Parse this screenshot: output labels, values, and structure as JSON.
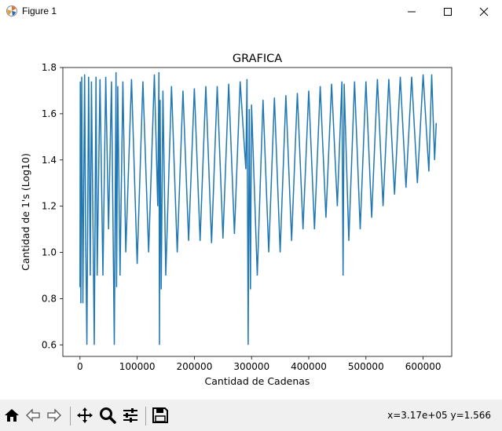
{
  "window": {
    "title": "Figure 1",
    "minimize_icon": "minimize-icon",
    "maximize_icon": "maximize-icon",
    "close_icon": "close-icon"
  },
  "toolbar": {
    "buttons": [
      {
        "name": "home-icon"
      },
      {
        "name": "back-arrow-icon"
      },
      {
        "name": "forward-arrow-icon"
      },
      {
        "name": "pan-icon"
      },
      {
        "name": "zoom-icon"
      },
      {
        "name": "configure-subplots-icon"
      },
      {
        "name": "save-icon"
      }
    ],
    "coordinates": "x=3.17e+05 y=1.566"
  },
  "chart_data": {
    "type": "line",
    "title": "GRAFICA",
    "xlabel": "Cantidad de Cadenas",
    "ylabel": "Cantidad de 1's (Log10)",
    "xlim": [
      -30000,
      650000
    ],
    "ylim": [
      0.55,
      1.8
    ],
    "xticks": [
      0,
      100000,
      200000,
      300000,
      400000,
      500000,
      600000
    ],
    "xtick_labels": [
      "0",
      "100000",
      "200000",
      "300000",
      "400000",
      "500000",
      "600000"
    ],
    "yticks": [
      0.6,
      0.8,
      1.0,
      1.2,
      1.4,
      1.6,
      1.8
    ],
    "ytick_labels": [
      "0.6",
      "0.8",
      "1.0",
      "1.2",
      "1.4",
      "1.6",
      "1.8"
    ],
    "line_color": "#1f77b4",
    "grid": false,
    "series": [
      {
        "x": [
          0,
          500,
          1500,
          3000,
          5000,
          8000,
          10000,
          12000,
          15000,
          18000,
          20000,
          25000,
          28000,
          30000,
          35000,
          40000,
          45000,
          50000,
          55000,
          60000,
          63000,
          64000,
          66000,
          70000,
          75000,
          80000,
          90000,
          100000,
          110000,
          120000,
          130000,
          136000,
          138000,
          139000,
          140000,
          142000,
          145000,
          150000,
          160000,
          170000,
          180000,
          190000,
          200000,
          210000,
          220000,
          230000,
          240000,
          250000,
          260000,
          270000,
          280000,
          290000,
          292000,
          294000,
          296000,
          298000,
          300000,
          310000,
          320000,
          330000,
          340000,
          350000,
          360000,
          370000,
          380000,
          390000,
          400000,
          410000,
          420000,
          430000,
          440000,
          450000,
          458000,
          460000,
          462000,
          470000,
          480000,
          490000,
          500000,
          510000,
          520000,
          530000,
          540000,
          550000,
          560000,
          570000,
          580000,
          590000,
          600000,
          610000,
          615000,
          620000,
          623000
        ],
        "y": [
          0.85,
          1.74,
          0.78,
          1.76,
          0.78,
          1.77,
          1.05,
          0.6,
          1.76,
          0.9,
          1.74,
          0.6,
          1.76,
          0.9,
          1.75,
          0.9,
          1.76,
          1.1,
          1.74,
          0.6,
          1.78,
          0.85,
          1.72,
          0.9,
          1.74,
          1.0,
          1.75,
          0.95,
          1.74,
          1.0,
          1.77,
          1.2,
          1.78,
          0.6,
          1.66,
          0.84,
          1.7,
          0.9,
          1.72,
          1.0,
          1.7,
          1.05,
          1.71,
          1.05,
          1.72,
          1.04,
          1.72,
          1.06,
          1.73,
          1.08,
          1.74,
          1.36,
          1.75,
          0.6,
          1.62,
          0.84,
          1.64,
          0.9,
          1.66,
          1.0,
          1.67,
          1.0,
          1.68,
          1.05,
          1.69,
          1.1,
          1.7,
          1.1,
          1.72,
          1.15,
          1.73,
          1.2,
          1.74,
          0.9,
          1.73,
          1.05,
          1.74,
          1.1,
          1.74,
          1.15,
          1.75,
          1.2,
          1.75,
          1.25,
          1.76,
          1.28,
          1.76,
          1.3,
          1.77,
          1.35,
          1.77,
          1.4,
          1.56
        ]
      }
    ]
  }
}
